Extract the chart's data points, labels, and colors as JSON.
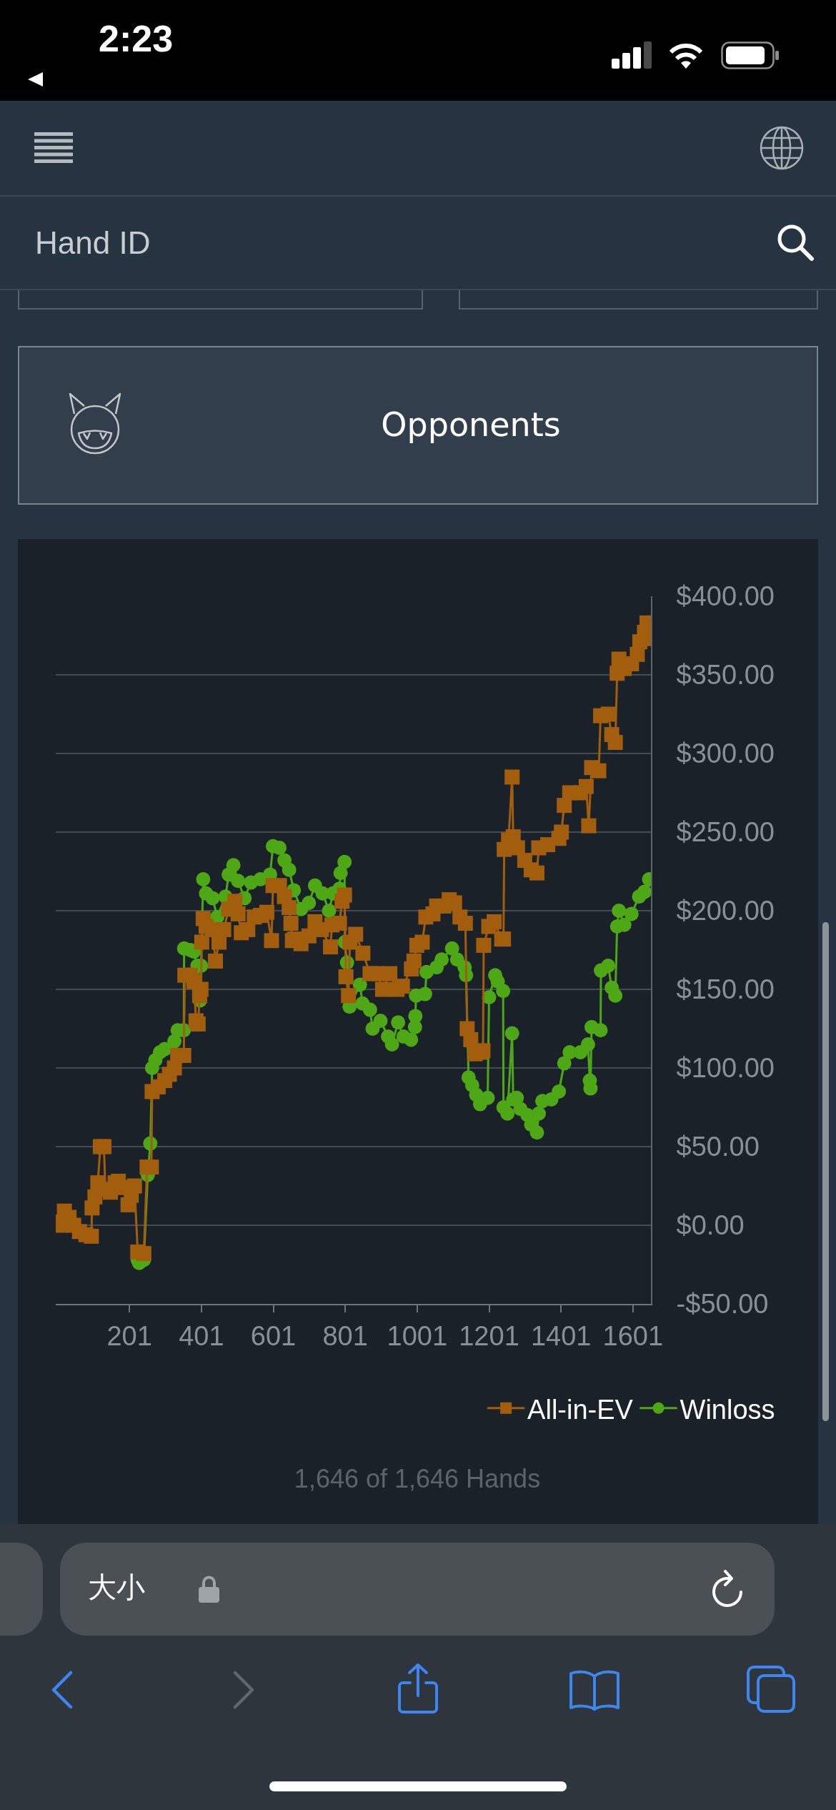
{
  "chart_data": {
    "type": "line",
    "series": [
      {
        "name": "All-in-EV",
        "color": "#a25e0c",
        "marker": "square",
        "x": [
          1,
          8,
          20,
          33,
          46,
          62,
          80,
          95,
          97,
          105,
          113,
          120,
          130,
          134,
          148,
          161,
          170,
          184,
          197,
          206,
          215,
          224,
          241,
          250,
          262,
          264,
          281,
          299,
          312,
          326,
          335,
          352,
          355,
          370,
          380,
          386,
          392,
          396,
          400,
          402,
          406,
          414,
          432,
          440,
          450,
          463,
          477,
          494,
          503,
          512,
          530,
          548,
          565,
          583,
          596,
          600,
          618,
          632,
          645,
          650,
          654,
          660,
          678,
          700,
          717,
          735,
          760,
          764,
          785,
          792,
          799,
          803,
          810,
          814,
          830,
          850,
          870,
          890,
          905,
          925,
          945,
          960,
          985,
          992,
          1000,
          1015,
          1025,
          1045,
          1055,
          1075,
          1090,
          1105,
          1120,
          1135,
          1140,
          1150,
          1162,
          1175,
          1184,
          1186,
          1200,
          1215,
          1236,
          1241,
          1243,
          1255,
          1265,
          1268,
          1280,
          1300,
          1318,
          1334,
          1339,
          1364,
          1395,
          1402,
          1410,
          1425,
          1455,
          1471,
          1478,
          1486,
          1506,
          1511,
          1532,
          1542,
          1552,
          1557,
          1562,
          1577,
          1597,
          1613,
          1620,
          1633,
          1640,
          1646
        ],
        "values": [
          2,
          0,
          9,
          5,
          0,
          -4,
          -6,
          -7,
          11,
          18,
          27,
          50,
          50,
          23,
          21,
          27,
          28,
          24,
          13,
          19,
          25,
          -17,
          -18,
          37,
          37,
          85,
          88,
          92,
          96,
          100,
          108,
          108,
          159,
          159,
          155,
          130,
          128,
          146,
          150,
          180,
          195,
          190,
          188,
          168,
          180,
          188,
          201,
          206,
          198,
          186,
          188,
          196,
          197,
          199,
          181,
          216,
          216,
          209,
          202,
          192,
          181,
          182,
          179,
          184,
          193,
          188,
          177,
          191,
          192,
          206,
          210,
          158,
          146,
          180,
          185,
          173,
          160,
          160,
          150,
          160,
          150,
          152,
          163,
          168,
          178,
          180,
          196,
          198,
          203,
          203,
          207,
          205,
          196,
          192,
          125,
          118,
          109,
          110,
          111,
          178,
          190,
          193,
          182,
          182,
          239,
          245,
          285,
          247,
          240,
          232,
          226,
          224,
          240,
          242,
          246,
          250,
          267,
          275,
          275,
          279,
          254,
          291,
          289,
          324,
          325,
          312,
          307,
          351,
          360,
          354,
          357,
          363,
          371,
          377,
          383,
          373
        ]
      },
      {
        "name": "Winloss",
        "color": "#4ea815",
        "marker": "circle",
        "x": [
          224,
          228,
          241,
          252,
          259,
          264,
          273,
          286,
          299,
          326,
          335,
          352,
          353,
          370,
          380,
          390,
          397,
          400,
          406,
          414,
          432,
          445,
          468,
          477,
          490,
          503,
          521,
          539,
          565,
          592,
          600,
          618,
          632,
          645,
          658,
          678,
          700,
          717,
          738,
          756,
          767,
          785,
          788,
          799,
          800,
          806,
          813,
          842,
          849,
          870,
          877,
          899,
          920,
          931,
          948,
          963,
          984,
          995,
          996,
          998,
          1023,
          1027,
          1055,
          1069,
          1098,
          1112,
          1133,
          1137,
          1144,
          1154,
          1165,
          1176,
          1197,
          1201,
          1218,
          1225,
          1240,
          1241,
          1252,
          1265,
          1268,
          1278,
          1288,
          1308,
          1318,
          1334,
          1339,
          1349,
          1374,
          1395,
          1410,
          1425,
          1455,
          1476,
          1481,
          1483,
          1486,
          1511,
          1512,
          1532,
          1542,
          1552,
          1557,
          1562,
          1577,
          1597,
          1618,
          1633,
          1646
        ],
        "values": [
          -22,
          -24,
          -22,
          32,
          52,
          100,
          105,
          110,
          112,
          117,
          124,
          124,
          176,
          175,
          174,
          165,
          143,
          165,
          220,
          211,
          208,
          196,
          209,
          223,
          229,
          219,
          208,
          218,
          220,
          223,
          241,
          240,
          232,
          226,
          213,
          201,
          205,
          216,
          211,
          200,
          211,
          214,
          224,
          231,
          180,
          167,
          139,
          153,
          141,
          137,
          125,
          130,
          120,
          115,
          129,
          120,
          118,
          126,
          133,
          146,
          147,
          161,
          164,
          169,
          176,
          169,
          164,
          159,
          94,
          89,
          83,
          77,
          81,
          145,
          159,
          155,
          149,
          75,
          71,
          122,
          80,
          81,
          74,
          70,
          64,
          59,
          71,
          79,
          80,
          85,
          103,
          110,
          110,
          115,
          92,
          87,
          126,
          124,
          162,
          165,
          151,
          146,
          190,
          200,
          191,
          198,
          209,
          212,
          220
        ]
      }
    ],
    "xlim": [
      -4,
      1651
    ],
    "xticks": [
      201,
      401,
      601,
      801,
      1001,
      1201,
      1401,
      1601
    ],
    "ylim": [
      -50,
      400
    ],
    "yticks": [
      {
        "value": -50,
        "label": "-$50.00"
      },
      {
        "value": 0,
        "label": "$0.00"
      },
      {
        "value": 50,
        "label": "$50.00"
      },
      {
        "value": 100,
        "label": "$100.00"
      },
      {
        "value": 150,
        "label": "$150.00"
      },
      {
        "value": 200,
        "label": "$200.00"
      },
      {
        "value": 250,
        "label": "$250.00"
      },
      {
        "value": 300,
        "label": "$300.00"
      },
      {
        "value": 350,
        "label": "$350.00"
      },
      {
        "value": 400,
        "label": "$400.00"
      }
    ],
    "grid": "y",
    "legend": "bottom right",
    "annotations": [
      "2:23",
      "Hand ID",
      "Opponents",
      "1,646 of 1,646 Hands",
      "大小"
    ]
  }
}
